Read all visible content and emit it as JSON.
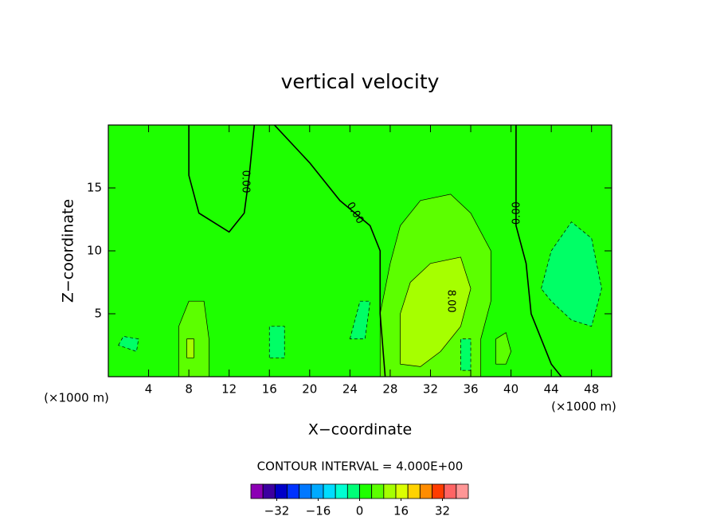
{
  "chart_data": {
    "type": "contour",
    "title": "vertical velocity",
    "xlabel": "X−coordinate",
    "ylabel": "Z−coordinate",
    "x_unit_labels": [
      "(×1000 m)",
      "(×1000 m)"
    ],
    "xlim": [
      0,
      50
    ],
    "ylim": [
      0,
      20
    ],
    "xticks": [
      4,
      8,
      12,
      16,
      20,
      24,
      28,
      32,
      36,
      40,
      44,
      48
    ],
    "yticks": [
      5,
      10,
      15
    ],
    "background": {
      "value": 0,
      "color": "#1eff00"
    },
    "regions": [
      {
        "value": 4,
        "color": "#5cff00",
        "points": [
          [
            27,
            0
          ],
          [
            27,
            5
          ],
          [
            28,
            9
          ],
          [
            29,
            12
          ],
          [
            31,
            14
          ],
          [
            34,
            14.5
          ],
          [
            36,
            13
          ],
          [
            38,
            10
          ],
          [
            38,
            6
          ],
          [
            37,
            3
          ],
          [
            37,
            0
          ]
        ]
      },
      {
        "value": 8,
        "color": "#a6ff00",
        "points": [
          [
            29,
            1
          ],
          [
            29,
            5
          ],
          [
            30,
            7.5
          ],
          [
            32,
            9
          ],
          [
            35,
            9.5
          ],
          [
            36,
            7
          ],
          [
            35,
            4
          ],
          [
            33,
            2
          ],
          [
            31,
            0.8
          ]
        ]
      },
      {
        "value": 4,
        "color": "#5cff00",
        "points": [
          [
            7,
            0
          ],
          [
            7,
            4
          ],
          [
            8,
            6
          ],
          [
            9.5,
            6
          ],
          [
            10,
            3
          ],
          [
            10,
            0
          ]
        ]
      },
      {
        "value": 8,
        "color": "#a6ff00",
        "points": [
          [
            7.8,
            1.5
          ],
          [
            7.8,
            3
          ],
          [
            8.5,
            3
          ],
          [
            8.5,
            1.5
          ]
        ]
      },
      {
        "value": 4,
        "color": "#5cff00",
        "points": [
          [
            38.5,
            1
          ],
          [
            38.5,
            3
          ],
          [
            39.5,
            3.5
          ],
          [
            40,
            2
          ],
          [
            39.5,
            1
          ]
        ]
      },
      {
        "value": -4,
        "color": "#00ff66",
        "points": [
          [
            43,
            7
          ],
          [
            44,
            10
          ],
          [
            46,
            12.3
          ],
          [
            48,
            11
          ],
          [
            49,
            7
          ],
          [
            48,
            4
          ],
          [
            46,
            4.5
          ],
          [
            44,
            6
          ]
        ]
      },
      {
        "value": -4,
        "color": "#00ff66",
        "points": [
          [
            1,
            2.5
          ],
          [
            1.5,
            3.2
          ],
          [
            3,
            3
          ],
          [
            2.8,
            2
          ]
        ]
      },
      {
        "value": -4,
        "color": "#00ff66",
        "points": [
          [
            16,
            1.5
          ],
          [
            16,
            4
          ],
          [
            17.5,
            4
          ],
          [
            17.5,
            1.5
          ]
        ]
      },
      {
        "value": -4,
        "color": "#00ff66",
        "points": [
          [
            24,
            3
          ],
          [
            25,
            6
          ],
          [
            26,
            6
          ],
          [
            25.5,
            3
          ]
        ]
      },
      {
        "value": -4,
        "color": "#00ff66",
        "points": [
          [
            35,
            0.5
          ],
          [
            35,
            3
          ],
          [
            36,
            3
          ],
          [
            36,
            0.5
          ]
        ]
      }
    ],
    "contours": [
      {
        "value": 0,
        "points": [
          [
            8,
            20
          ],
          [
            8,
            16
          ],
          [
            9,
            13
          ],
          [
            12,
            11.5
          ],
          [
            13.5,
            13
          ],
          [
            14,
            16
          ],
          [
            14.5,
            20
          ]
        ]
      },
      {
        "value": 0,
        "points": [
          [
            16.5,
            20
          ],
          [
            20,
            17
          ],
          [
            23,
            14
          ],
          [
            26,
            12
          ],
          [
            27,
            10
          ],
          [
            27,
            5
          ],
          [
            27.5,
            0
          ]
        ]
      },
      {
        "value": 0,
        "points": [
          [
            40.5,
            20
          ],
          [
            40.5,
            12
          ],
          [
            41.5,
            9
          ],
          [
            42,
            5
          ],
          [
            44,
            1
          ],
          [
            45,
            0
          ]
        ]
      }
    ],
    "contour_labels": [
      {
        "text": "0.00",
        "x": 13.6,
        "z": 15.5,
        "angle": 90
      },
      {
        "text": "0.00",
        "x": 24.5,
        "z": 13,
        "angle": 60
      },
      {
        "text": "0.00",
        "x": 40.6,
        "z": 13,
        "angle": -90
      },
      {
        "text": "8.00",
        "x": 34,
        "z": 6,
        "angle": 90
      }
    ],
    "contour_interval": "CONTOUR INTERVAL = 4.000E+00",
    "colorbar": {
      "lim": [
        -42,
        42
      ],
      "ticks": [
        {
          "value": -32,
          "label": "−32"
        },
        {
          "value": -16,
          "label": "−16"
        },
        0,
        16,
        32
      ],
      "colors": [
        "#8c00b4",
        "#3c00a0",
        "#0000c8",
        "#0032ff",
        "#0078ff",
        "#00aaff",
        "#00dcff",
        "#00ffd2",
        "#00ff78",
        "#1eff00",
        "#5cff00",
        "#a6ff00",
        "#dcff00",
        "#ffd200",
        "#ff8c00",
        "#ff3c00",
        "#ff6464",
        "#ff9696"
      ]
    }
  }
}
